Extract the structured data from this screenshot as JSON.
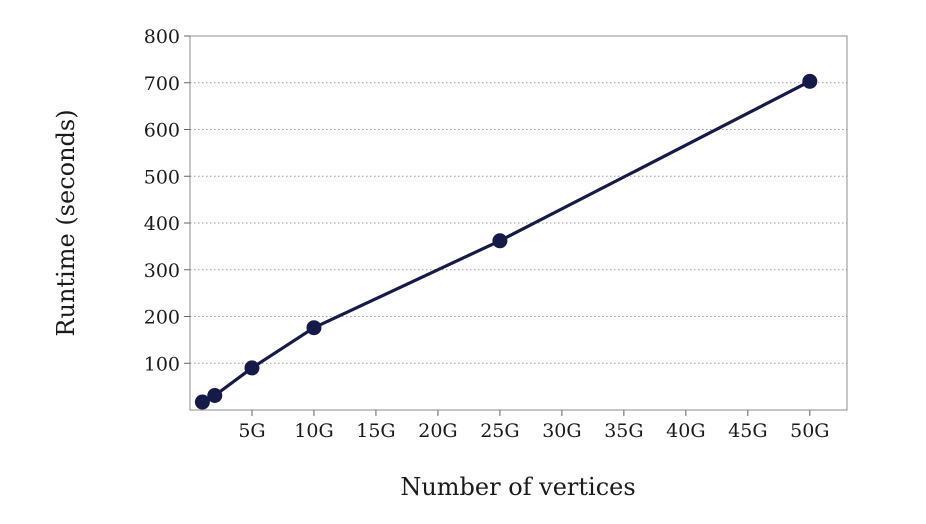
{
  "chart_data": {
    "type": "line",
    "xlabel": "Number of vertices",
    "ylabel": "Runtime (seconds)",
    "x_ticks": [
      {
        "value": 5,
        "label": "5G"
      },
      {
        "value": 10,
        "label": "10G"
      },
      {
        "value": 15,
        "label": "15G"
      },
      {
        "value": 20,
        "label": "20G"
      },
      {
        "value": 25,
        "label": "25G"
      },
      {
        "value": 30,
        "label": "30G"
      },
      {
        "value": 35,
        "label": "35G"
      },
      {
        "value": 40,
        "label": "40G"
      },
      {
        "value": 45,
        "label": "45G"
      },
      {
        "value": 50,
        "label": "50G"
      }
    ],
    "y_ticks": [
      100,
      200,
      300,
      400,
      500,
      600,
      700,
      800
    ],
    "xlim": [
      0,
      53
    ],
    "ylim": [
      0,
      800
    ],
    "grid": "horizontal-dotted",
    "series": [
      {
        "color": "#161a48",
        "x": [
          1,
          2,
          5,
          10,
          25,
          50
        ],
        "y": [
          17,
          31,
          90,
          176,
          362,
          703
        ]
      }
    ]
  }
}
